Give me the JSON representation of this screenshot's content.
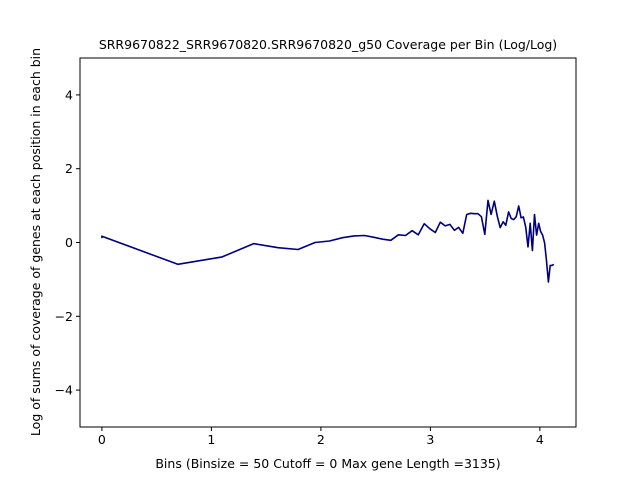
{
  "chart_data": {
    "type": "line",
    "title": "SRR9670822_SRR9670820.SRR9670820_g50 Coverage per Bin (Log/Log)",
    "xlabel": "Bins  (Binsize = 50 Cutoff = 0 Max gene Length =3135)",
    "ylabel": "Log of sums of coverage of genes at each position in each bin",
    "xlim": [
      -0.2,
      4.33
    ],
    "ylim": [
      -5,
      5
    ],
    "xticks": [
      0,
      1,
      2,
      3,
      4
    ],
    "xtick_labels": [
      "0",
      "1",
      "2",
      "3",
      "4"
    ],
    "yticks": [
      -4,
      -2,
      0,
      2,
      4
    ],
    "ytick_labels": [
      "−4",
      "−2",
      "0",
      "2",
      "4"
    ],
    "grid": false,
    "line_color": "#00007f",
    "series": [
      {
        "x": [
          0.0,
          0.0,
          0.693,
          1.099,
          1.386,
          1.609,
          1.792,
          1.946,
          2.079,
          2.197,
          2.303,
          2.398,
          2.485,
          2.565,
          2.639,
          2.708,
          2.773,
          2.833,
          2.89,
          2.944,
          2.996,
          3.045,
          3.091,
          3.135,
          3.178,
          3.219,
          3.258,
          3.296,
          3.332,
          3.367,
          3.401,
          3.434,
          3.466,
          3.497,
          3.526,
          3.555,
          3.584,
          3.611,
          3.638,
          3.664,
          3.689,
          3.714,
          3.738,
          3.761,
          3.784,
          3.807,
          3.829,
          3.85,
          3.871,
          3.892,
          3.912,
          3.932,
          3.951,
          3.97,
          3.989,
          4.007,
          4.025,
          4.043,
          4.06,
          4.078,
          4.094,
          4.111,
          4.127
        ],
        "y": [
          0.12,
          0.17,
          -0.59,
          -0.39,
          -0.03,
          -0.14,
          -0.19,
          0.0,
          0.04,
          0.13,
          0.18,
          0.19,
          0.14,
          0.09,
          0.06,
          0.21,
          0.19,
          0.32,
          0.21,
          0.51,
          0.37,
          0.27,
          0.55,
          0.45,
          0.49,
          0.33,
          0.41,
          0.25,
          0.76,
          0.79,
          0.78,
          0.78,
          0.7,
          0.22,
          1.14,
          0.76,
          1.12,
          0.71,
          0.4,
          0.56,
          0.47,
          0.83,
          0.65,
          0.62,
          0.7,
          0.99,
          0.67,
          0.69,
          0.42,
          -0.12,
          0.52,
          -0.22,
          0.76,
          0.2,
          0.52,
          0.3,
          0.2,
          -0.01,
          -0.47,
          -1.07,
          -0.62,
          -0.62,
          -0.59
        ]
      }
    ]
  }
}
